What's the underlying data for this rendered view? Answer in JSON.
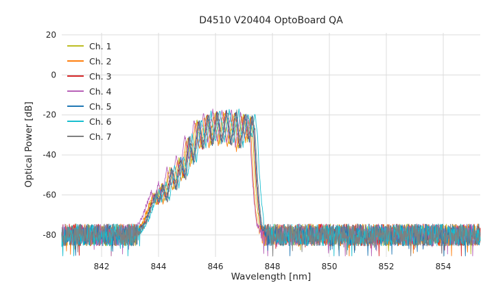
{
  "chart_data": {
    "type": "line",
    "title": "D4510 V20404 OptoBoard QA",
    "xlabel": "Wavelength [nm]",
    "ylabel": "Optical Power [dB]",
    "xlim": [
      840.6,
      855.3
    ],
    "ylim": [
      -91,
      21
    ],
    "xticks": [
      842,
      844,
      846,
      848,
      850,
      852,
      854
    ],
    "yticks": [
      20,
      0,
      -20,
      -40,
      -60,
      -80
    ],
    "grid": true,
    "grid_color": "#dcdcdc",
    "background": "#ffffff",
    "legend_position": "upper-left",
    "noise_floor_db": -80,
    "noise_amplitude_db": 5.5,
    "spectrum_envelope": [
      [
        843.2,
        -80
      ],
      [
        843.5,
        -73
      ],
      [
        843.7,
        -65
      ],
      [
        843.85,
        -59
      ],
      [
        843.95,
        -64
      ],
      [
        844.1,
        -55
      ],
      [
        844.22,
        -63
      ],
      [
        844.4,
        -47
      ],
      [
        844.55,
        -57
      ],
      [
        844.72,
        -42
      ],
      [
        844.87,
        -52
      ],
      [
        845.02,
        -31
      ],
      [
        845.17,
        -44
      ],
      [
        845.35,
        -23
      ],
      [
        845.5,
        -37
      ],
      [
        845.68,
        -19.5
      ],
      [
        845.83,
        -35
      ],
      [
        846.0,
        -18.5
      ],
      [
        846.15,
        -34
      ],
      [
        846.33,
        -18
      ],
      [
        846.48,
        -35
      ],
      [
        846.66,
        -18.5
      ],
      [
        846.8,
        -37
      ],
      [
        846.98,
        -19.5
      ],
      [
        847.12,
        -33
      ],
      [
        847.22,
        -21
      ],
      [
        847.3,
        -28
      ],
      [
        847.38,
        -50
      ],
      [
        847.46,
        -65
      ],
      [
        847.55,
        -76
      ],
      [
        847.7,
        -80
      ]
    ],
    "series": [
      {
        "name": "Ch. 1",
        "color": "#bcbd22",
        "dx": 0.0,
        "dy": 0,
        "seed": 11
      },
      {
        "name": "Ch. 2",
        "color": "#ff7f0e",
        "dx": -0.06,
        "dy": -1,
        "seed": 22
      },
      {
        "name": "Ch. 3",
        "color": "#d62728",
        "dx": 0.04,
        "dy": 0,
        "seed": 33
      },
      {
        "name": "Ch. 4",
        "color": "#b760b7",
        "dx": -0.1,
        "dy": 1,
        "seed": 44
      },
      {
        "name": "Ch. 5",
        "color": "#1f77b4",
        "dx": 0.06,
        "dy": 0,
        "seed": 55
      },
      {
        "name": "Ch. 6",
        "color": "#17becf",
        "dx": 0.16,
        "dy": 1,
        "seed": 66
      },
      {
        "name": "Ch. 7",
        "color": "#7f7f7f",
        "dx": 0.09,
        "dy": 0,
        "seed": 77
      }
    ]
  }
}
